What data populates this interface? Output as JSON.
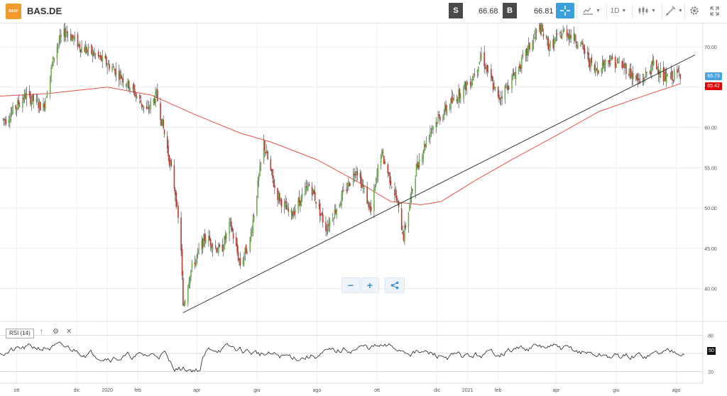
{
  "header": {
    "logo_text": "BASF",
    "symbol": "BAS.DE",
    "sell_label": "S",
    "sell_price": "66.68",
    "buy_label": "B",
    "buy_price": "66.81",
    "timeframe": "1D"
  },
  "toolbar_icons": [
    "crosshair-icon",
    "chart-type-icon",
    "candlestick-icon",
    "draw-tools-icon",
    "settings-icon",
    "fullscreen-icon"
  ],
  "main_chart": {
    "y_ticks": [
      "70.00",
      "65.00",
      "60.00",
      "55.00",
      "50.00",
      "45.00",
      "40.00"
    ],
    "x_labels": [
      "ott",
      "dic",
      "2020",
      "feb",
      "apr",
      "giu",
      "ago",
      "ott",
      "dic",
      "2021",
      "feb",
      "apr",
      "giu",
      "ago"
    ],
    "last_price_badge": "66.73",
    "ma_price_badge": "65.42",
    "colors": {
      "up": "#6ab04c",
      "down": "#c0392b",
      "ma": "#e8534a",
      "trendline": "#222222",
      "last": "#4aa3df",
      "ma_badge": "#e00000"
    }
  },
  "zoom_controls": {
    "minus": "−",
    "plus": "+"
  },
  "rsi_panel": {
    "label": "RSI (14)",
    "y_ticks": [
      "80",
      "50",
      "20"
    ],
    "current_value": "50"
  },
  "chart_data": {
    "type": "candlestick",
    "title": "BAS.DE",
    "x_range": [
      "2019-09",
      "2021-08"
    ],
    "ylim": [
      36.0,
      73.0
    ],
    "series": [
      {
        "name": "price",
        "points": [
          [
            "2019-09-20",
            61.0
          ],
          [
            "2019-10-10",
            64.0
          ],
          [
            "2019-10-28",
            62.5
          ],
          [
            "2019-11-10",
            70.0
          ],
          [
            "2019-11-20",
            72.0
          ],
          [
            "2019-12-05",
            70.0
          ],
          [
            "2019-12-20",
            69.0
          ],
          [
            "2020-01-10",
            67.0
          ],
          [
            "2020-01-25",
            65.0
          ],
          [
            "2020-02-10",
            62.0
          ],
          [
            "2020-02-20",
            64.0
          ],
          [
            "2020-03-01",
            58.0
          ],
          [
            "2020-03-10",
            52.0
          ],
          [
            "2020-03-16",
            45.0
          ],
          [
            "2020-03-18",
            37.5
          ],
          [
            "2020-03-25",
            42.0
          ],
          [
            "2020-04-10",
            46.5
          ],
          [
            "2020-04-25",
            44.5
          ],
          [
            "2020-05-05",
            48.0
          ],
          [
            "2020-05-15",
            43.0
          ],
          [
            "2020-05-25",
            46.0
          ],
          [
            "2020-06-08",
            58.0
          ],
          [
            "2020-06-20",
            52.0
          ],
          [
            "2020-07-05",
            49.0
          ],
          [
            "2020-07-25",
            53.0
          ],
          [
            "2020-08-10",
            47.5
          ],
          [
            "2020-08-25",
            51.0
          ],
          [
            "2020-09-10",
            55.0
          ],
          [
            "2020-09-25",
            49.5
          ],
          [
            "2020-10-05",
            57.0
          ],
          [
            "2020-10-20",
            51.5
          ],
          [
            "2020-10-28",
            46.5
          ],
          [
            "2020-11-10",
            55.0
          ],
          [
            "2020-11-25",
            60.0
          ],
          [
            "2020-12-15",
            63.0
          ],
          [
            "2021-01-05",
            66.0
          ],
          [
            "2021-01-15",
            69.0
          ],
          [
            "2021-02-01",
            63.5
          ],
          [
            "2021-02-15",
            66.0
          ],
          [
            "2021-03-01",
            69.0
          ],
          [
            "2021-03-15",
            72.5
          ],
          [
            "2021-03-25",
            70.0
          ],
          [
            "2021-04-10",
            72.0
          ],
          [
            "2021-04-25",
            70.5
          ],
          [
            "2021-05-10",
            67.0
          ],
          [
            "2021-05-25",
            68.5
          ],
          [
            "2021-06-10",
            67.5
          ],
          [
            "2021-06-25",
            65.5
          ],
          [
            "2021-07-10",
            68.0
          ],
          [
            "2021-07-20",
            66.0
          ],
          [
            "2021-08-05",
            66.73
          ]
        ]
      },
      {
        "name": "moving average",
        "points": [
          [
            "2019-09-01",
            63.8
          ],
          [
            "2019-11-01",
            64.2
          ],
          [
            "2020-01-01",
            65.0
          ],
          [
            "2020-02-15",
            64.0
          ],
          [
            "2020-04-01",
            61.5
          ],
          [
            "2020-05-15",
            59.3
          ],
          [
            "2020-06-15",
            58.2
          ],
          [
            "2020-08-01",
            56.0
          ],
          [
            "2020-09-15",
            53.0
          ],
          [
            "2020-10-15",
            50.8
          ],
          [
            "2020-11-15",
            50.4
          ],
          [
            "2020-12-05",
            50.8
          ],
          [
            "2021-01-10",
            53.5
          ],
          [
            "2021-02-15",
            56.0
          ],
          [
            "2021-04-01",
            59.0
          ],
          [
            "2021-05-15",
            62.0
          ],
          [
            "2021-07-01",
            64.0
          ],
          [
            "2021-08-05",
            65.42
          ]
        ]
      },
      {
        "name": "trendline",
        "points": [
          [
            "2020-03-18",
            37.0
          ],
          [
            "2021-08-20",
            69.0
          ]
        ]
      }
    ],
    "rsi": {
      "ylim": [
        10,
        90
      ],
      "levels": [
        80,
        50,
        20
      ],
      "current": 50
    }
  }
}
